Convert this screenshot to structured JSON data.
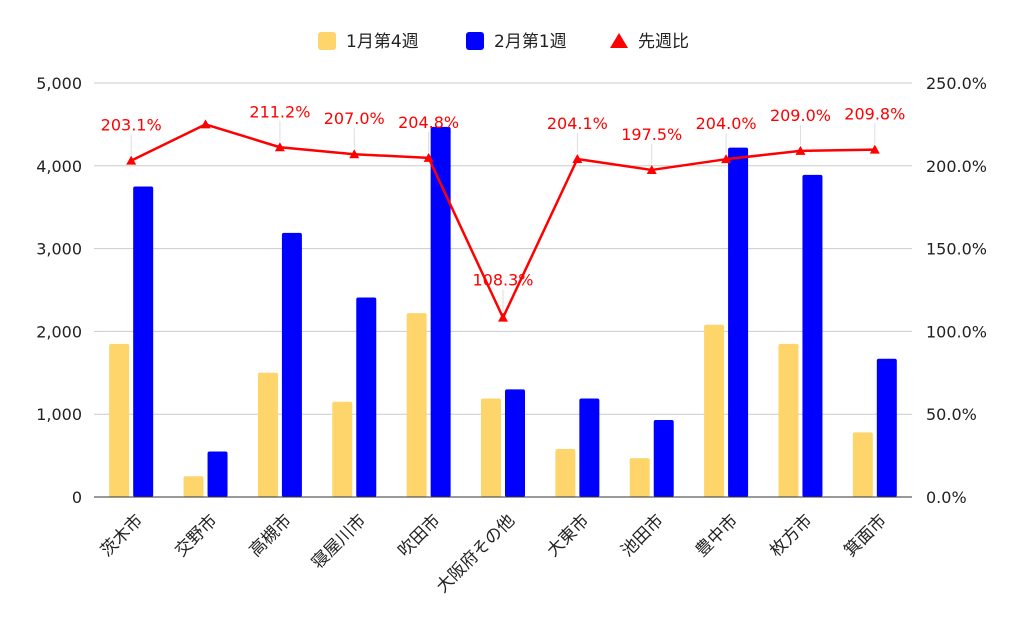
{
  "chart_data": {
    "type": "bar",
    "title": "",
    "xlabel": "",
    "ylabel": "",
    "categories": [
      "茨木市",
      "交野市",
      "高槻市",
      "寝屋川市",
      "吹田市",
      "大阪府その他",
      "大東市",
      "池田市",
      "豊中市",
      "枚方市",
      "箕面市"
    ],
    "series": [
      {
        "name": "1月第4週",
        "type": "bar",
        "axis": "left",
        "color": "#FDD56B",
        "values": [
          1850,
          250,
          1500,
          1150,
          2220,
          1190,
          580,
          470,
          2080,
          1850,
          780
        ]
      },
      {
        "name": "2月第1週",
        "type": "bar",
        "axis": "left",
        "color": "#0000FF",
        "values": [
          3750,
          550,
          3190,
          2410,
          4470,
          1300,
          1190,
          930,
          4220,
          3890,
          1670
        ]
      },
      {
        "name": "先週比",
        "type": "line",
        "axis": "right",
        "color": "#FF0000",
        "values": [
          203.1,
          225.0,
          211.2,
          207.0,
          204.8,
          108.3,
          204.1,
          197.5,
          204.0,
          209.0,
          209.8
        ],
        "labels": [
          "203.1%",
          "",
          "211.2%",
          "207.0%",
          "204.8%",
          "108.3%",
          "204.1%",
          "197.5%",
          "204.0%",
          "209.0%",
          "209.8%"
        ]
      }
    ],
    "ylim": [
      0,
      5000
    ],
    "y_ticks": [
      "0",
      "1,000",
      "2,000",
      "3,000",
      "4,000",
      "5,000"
    ],
    "y2lim": [
      0,
      250
    ],
    "y2_ticks": [
      "0.0%",
      "50.0%",
      "100.0%",
      "150.0%",
      "200.0%",
      "250.0%"
    ],
    "grid": true,
    "legend_position": "top"
  }
}
